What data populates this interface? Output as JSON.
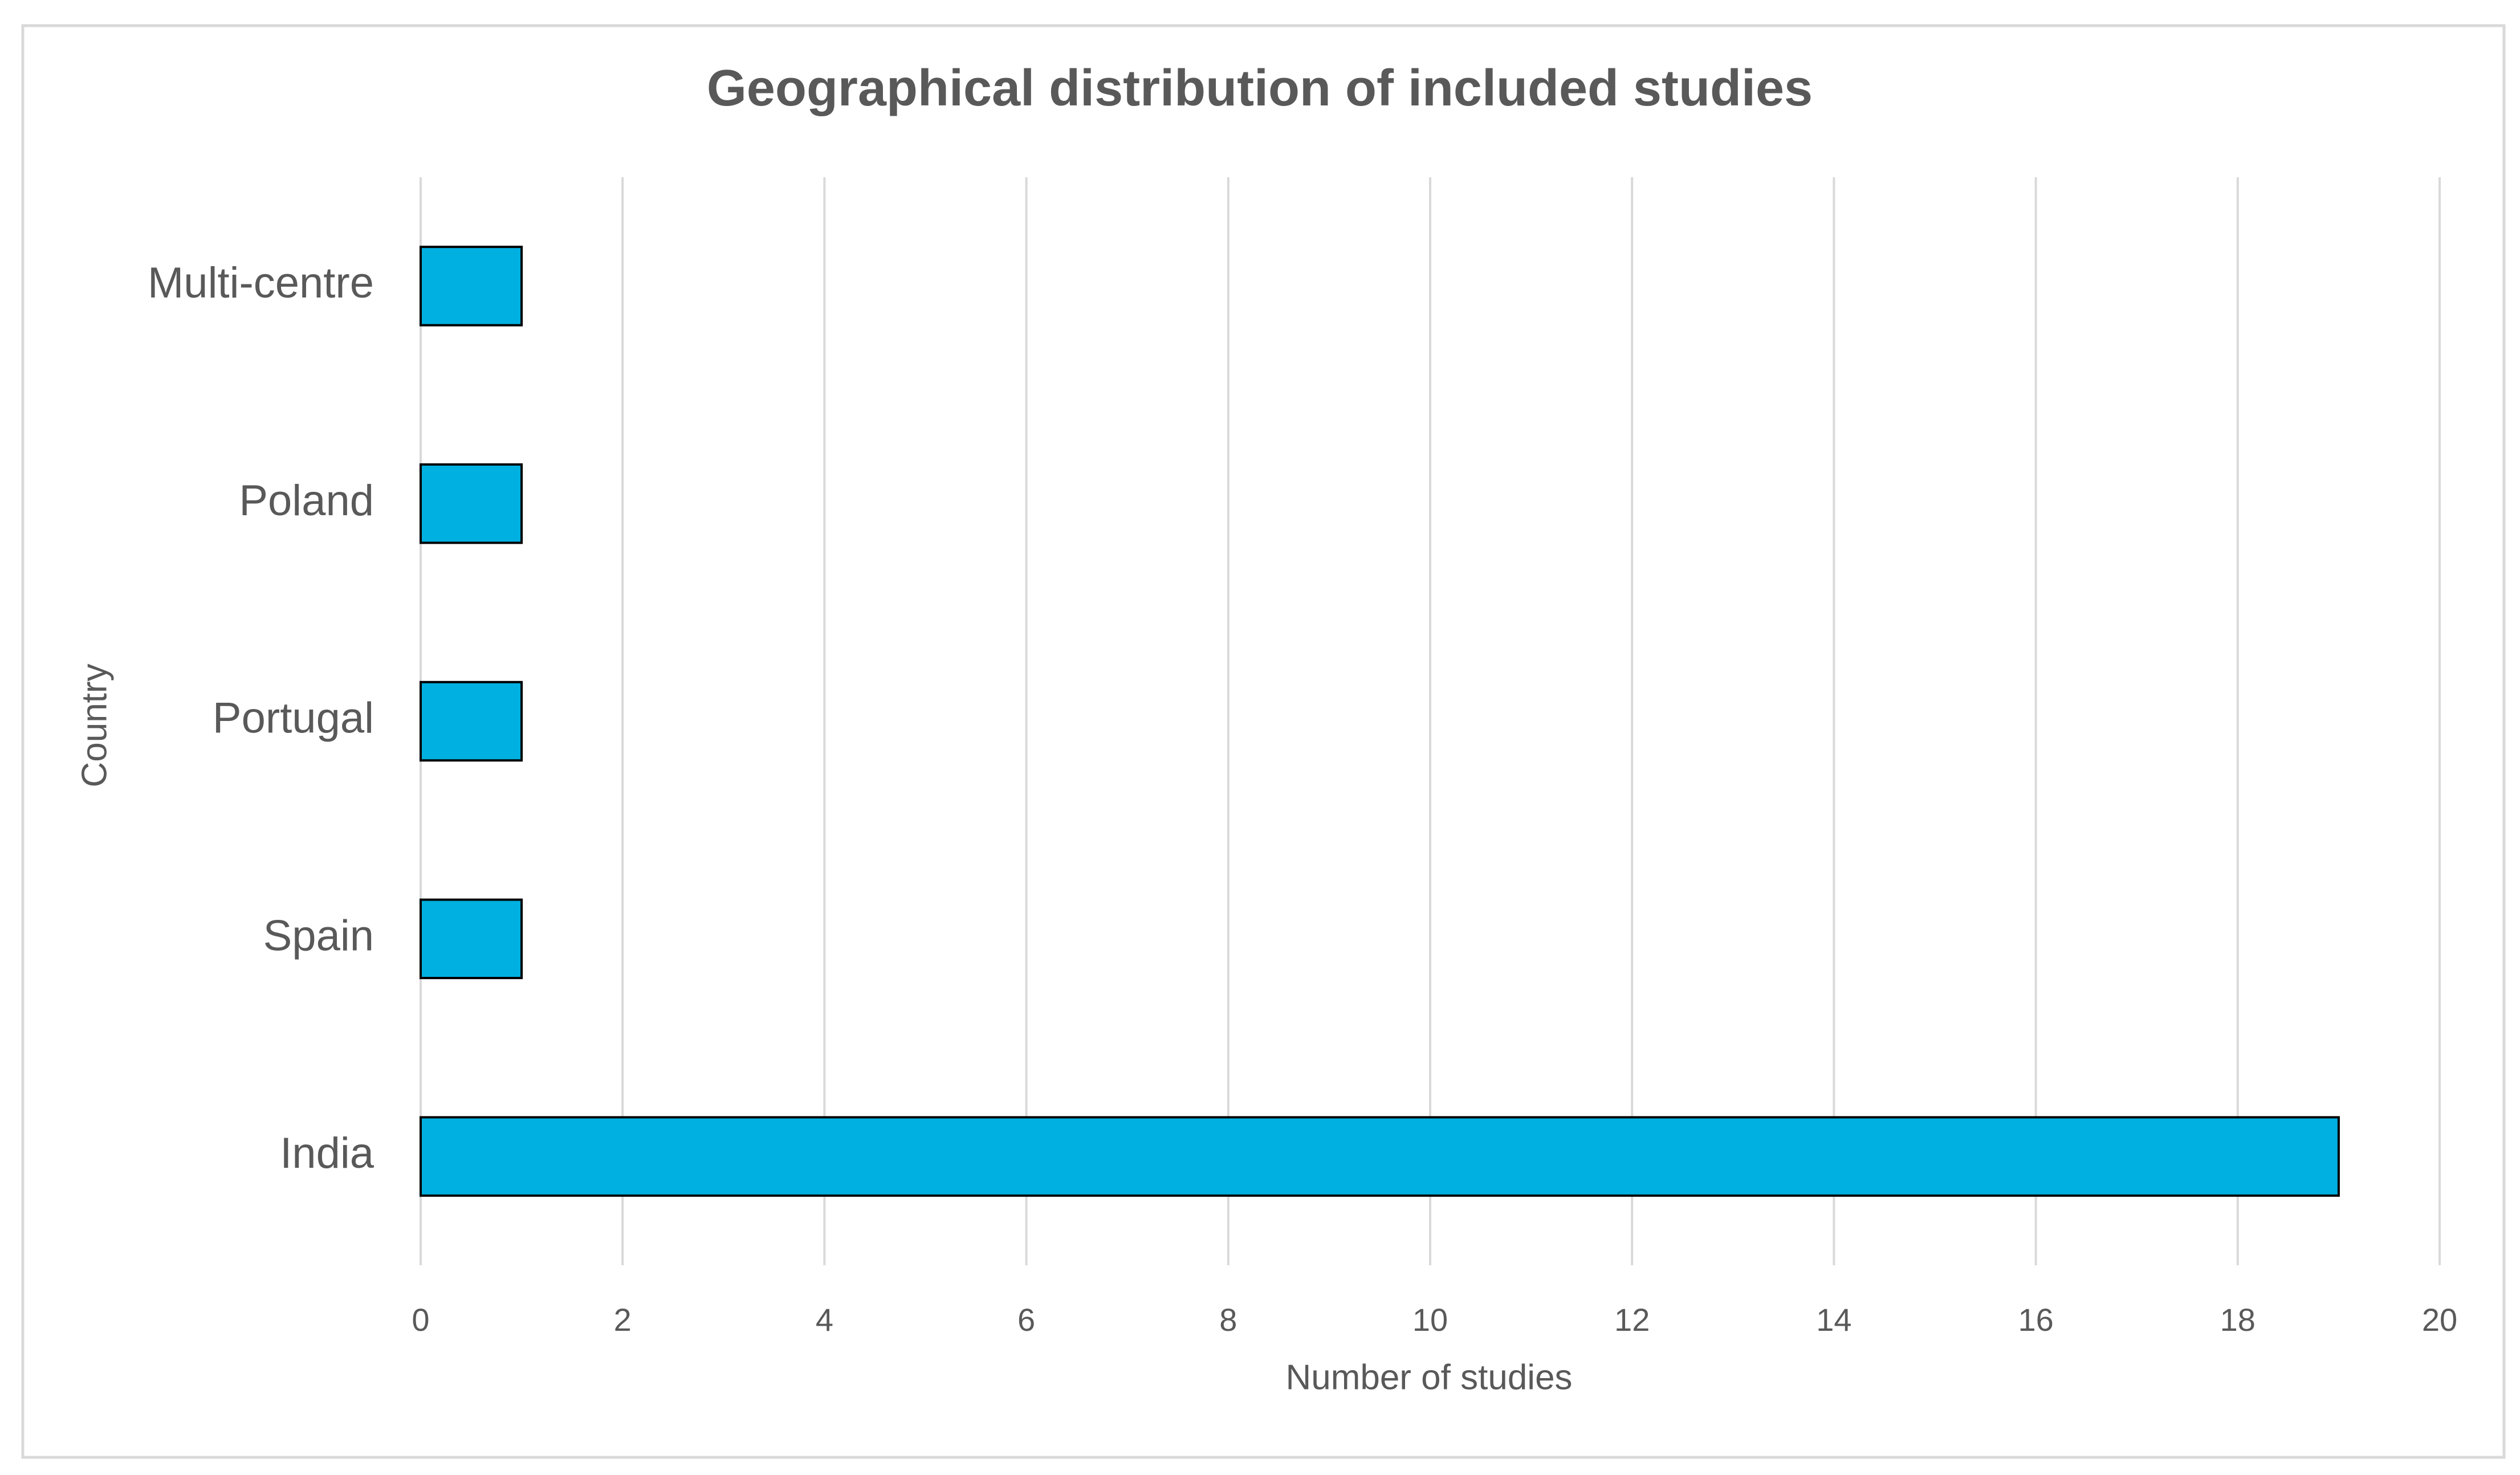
{
  "chart_data": {
    "type": "bar",
    "orientation": "horizontal",
    "title": "Geographical distribution of included studies",
    "x_label": "Number of studies",
    "y_label": "Country",
    "categories": [
      "India",
      "Spain",
      "Portugal",
      "Poland",
      "Multi-centre"
    ],
    "values": [
      19,
      1,
      1,
      1,
      1
    ],
    "color": "#00b0e0",
    "xlim": [
      0,
      20
    ],
    "xticks": [
      0,
      2,
      4,
      6,
      8,
      10,
      12,
      14,
      16,
      18,
      20
    ],
    "grid": true
  }
}
